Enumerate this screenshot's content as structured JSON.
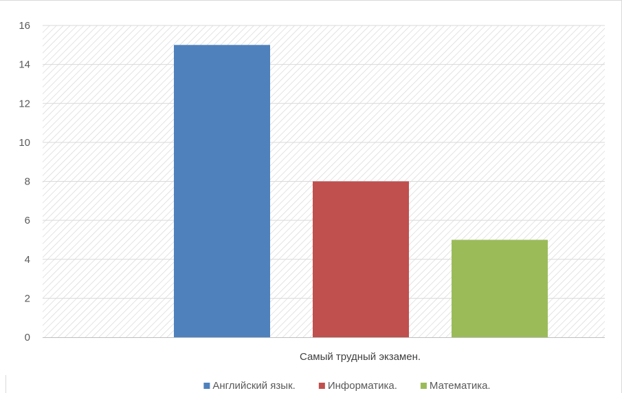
{
  "chart_data": {
    "type": "bar",
    "xlabel": "Самый трудный экзамен.",
    "ylabel": "",
    "ylim": [
      0,
      16
    ],
    "ytick_step": 2,
    "grid": true,
    "plot_background": "diagonal-hatch",
    "legend_position": "bottom",
    "series": [
      {
        "name": "Английский язык.",
        "value": 15,
        "color": "#4f81bd"
      },
      {
        "name": "Информатика.",
        "value": 8,
        "color": "#c0504d"
      },
      {
        "name": "Математика.",
        "value": 5,
        "color": "#9bbb59"
      }
    ]
  }
}
